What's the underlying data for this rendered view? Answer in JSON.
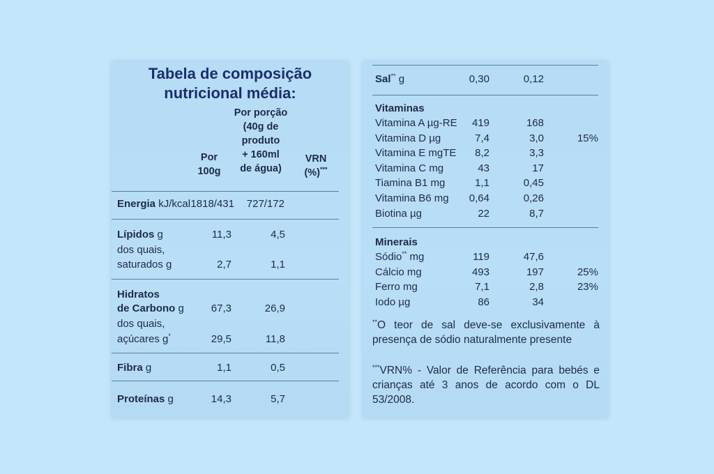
{
  "title_line1": "Tabela de composição",
  "title_line2": "nutricional média:",
  "columns": {
    "per100_l1": "Por",
    "per100_l2": "100g",
    "portion_l1": "Por porção",
    "portion_l2": "(40g de",
    "portion_l3": "produto",
    "portion_l4": "+ 160ml",
    "portion_l5": "de água)",
    "vrn_l1": "VRN",
    "vrn_l2": "(%)",
    "vrn_mark": "***"
  },
  "energy": {
    "label": "Energia",
    "unit": " kJ/kcal",
    "v100": "1818/431",
    "vport": "727/172"
  },
  "lipids": {
    "label": "Lípidos",
    "unit": " g",
    "v100": "11,3",
    "vport": "4,5",
    "sub1": "dos quais,",
    "sub2": "saturados g",
    "s100": "2,7",
    "sport": "1,1"
  },
  "carbs": {
    "label1": "Hidratos",
    "label2": "de Carbono",
    "unit": " g",
    "v100": "67,3",
    "vport": "26,9",
    "sub1": "dos quais,",
    "sub2": "açúcares g",
    "sub_mark": "*",
    "s100": "29,5",
    "sport": "11,8"
  },
  "fiber": {
    "label": "Fibra",
    "unit": " g",
    "v100": "1,1",
    "vport": "0,5"
  },
  "protein": {
    "label": "Proteínas",
    "unit": " g",
    "v100": "14,3",
    "vport": "5,7"
  },
  "salt": {
    "label": "Sal",
    "mark": "**",
    "unit": " g",
    "v100": "0,30",
    "vport": "0,12"
  },
  "vitamins": {
    "heading": "Vitaminas",
    "rows": [
      {
        "name": "Vitamina A µg-RE",
        "v100": "419",
        "vport": "168",
        "vrn": ""
      },
      {
        "name": "Vitamina D µg",
        "v100": "7,4",
        "vport": "3,0",
        "vrn": "15%"
      },
      {
        "name": "Vitamina E mgTE",
        "v100": "8,2",
        "vport": "3,3",
        "vrn": ""
      },
      {
        "name": "Vitamina C mg",
        "v100": "43",
        "vport": "17",
        "vrn": ""
      },
      {
        "name": "Tiamina B1 mg",
        "v100": "1,1",
        "vport": "0,45",
        "vrn": ""
      },
      {
        "name": "Vitamina B6 mg",
        "v100": "0,64",
        "vport": "0,26",
        "vrn": ""
      },
      {
        "name": "Biotina µg",
        "v100": "22",
        "vport": "8,7",
        "vrn": ""
      }
    ]
  },
  "minerals": {
    "heading": "Minerais",
    "rows": [
      {
        "name": "Sódio",
        "mark": "**",
        "unit": " mg",
        "v100": "119",
        "vport": "47,6",
        "vrn": ""
      },
      {
        "name": "Cálcio mg",
        "mark": "",
        "unit": "",
        "v100": "493",
        "vport": "197",
        "vrn": "25%"
      },
      {
        "name": "Ferro mg",
        "mark": "",
        "unit": "",
        "v100": "7,1",
        "vport": "2,8",
        "vrn": "23%"
      },
      {
        "name": "Iodo µg",
        "mark": "",
        "unit": "",
        "v100": "86",
        "vport": "34",
        "vrn": ""
      }
    ]
  },
  "notes": {
    "note1_mark": "**",
    "note1": "O  teor de sal deve-se exclusivamente à presença de sódio naturalmente presente",
    "note2_mark": "***",
    "note2": "VRN% - Valor de Referência para bebés e crianças até 3 anos de acordo com o DL 53/2008."
  }
}
